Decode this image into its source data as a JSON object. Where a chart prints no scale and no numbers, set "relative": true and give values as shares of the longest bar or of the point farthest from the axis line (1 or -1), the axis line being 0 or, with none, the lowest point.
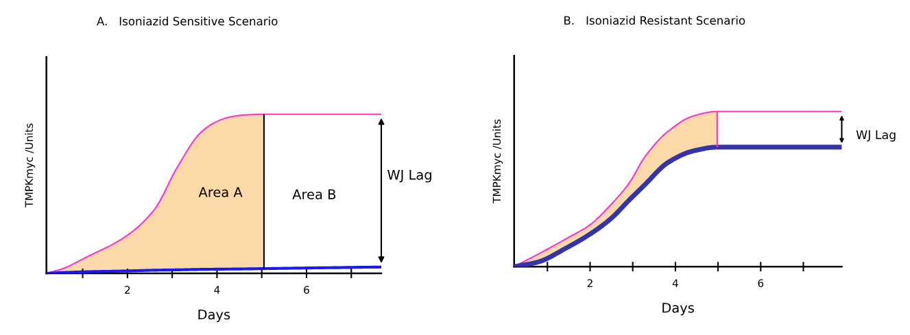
{
  "chart_data": [
    {
      "type": "line",
      "title": "A.   Isoniazid Sensitive Scenario",
      "xlabel": "Days",
      "ylabel": "TMPKmyc /Units",
      "relative": true,
      "xlim": [
        0.19,
        7.67
      ],
      "xticks": [
        {
          "value": 1,
          "label": null
        },
        2,
        {
          "value": 3,
          "label": null
        },
        4,
        {
          "value": 5,
          "label": null
        },
        6,
        {
          "value": 7,
          "label": null
        }
      ],
      "series": [
        {
          "color": "#ff33cc",
          "x": [
            0.19,
            0.56,
            1.07,
            1.95,
            2.6,
            3.1,
            3.62,
            3.9,
            4.25,
            4.6,
            5.05,
            7.67
          ],
          "values": [
            0,
            0.03,
            0.1,
            0.23,
            0.4,
            0.66,
            0.88,
            0.94,
            0.98,
            0.995,
            1,
            1
          ]
        },
        {
          "color": "#1a1aee",
          "x": [
            0.19,
            0.56,
            1.07,
            1.95,
            2.6,
            3.1,
            3.62,
            3.9,
            4.25,
            4.6,
            5.05,
            7.67
          ],
          "values": [
            0,
            0.005,
            0.01,
            0.015,
            0.02,
            0.022,
            0.025,
            0.026,
            0.027,
            0.028,
            0.03,
            0.04
          ],
          "lower": [
            0,
            0.005,
            0.01,
            0.015,
            0.02,
            0.022,
            0.025,
            0.026,
            0.027,
            0.028,
            0.03,
            null
          ],
          "upper": [
            0,
            0.03,
            0.1,
            0.23,
            0.4,
            0.66,
            0.88,
            0.94,
            0.98,
            0.995,
            1,
            null
          ]
        }
      ],
      "ref_lines": [
        {
          "axis": "x",
          "value": 5.05,
          "color": "#000000"
        }
      ],
      "annotations": [
        "Area A",
        "Area B",
        "WJ Lag"
      ]
    },
    {
      "type": "line",
      "title": "B.   Isoniazid Resistant Scenario",
      "xlabel": "Days",
      "ylabel": "TMPKmyc /Units",
      "relative": true,
      "xlim": [
        0.22,
        7.9
      ],
      "xticks": [
        {
          "value": 1,
          "label": null
        },
        2,
        {
          "value": 3,
          "label": null
        },
        4,
        {
          "value": 5,
          "label": null
        },
        6,
        {
          "value": 7,
          "label": null
        }
      ],
      "series": [
        {
          "color": "#ff33cc",
          "x": [
            0.22,
            0.78,
            1.44,
            2,
            2.49,
            2.92,
            3.29,
            3.82,
            4.41,
            4.98,
            7.9
          ],
          "values": [
            0,
            0.08,
            0.18,
            0.27,
            0.4,
            0.54,
            0.71,
            0.87,
            0.97,
            1,
            1
          ]
        },
        {
          "color": "#3333aa",
          "x": [
            0.22,
            0.78,
            1.44,
            2,
            2.49,
            2.92,
            3.29,
            3.82,
            4.41,
            4.98,
            7.9
          ],
          "values": [
            0,
            0.03,
            0.12,
            0.21,
            0.31,
            0.43,
            0.53,
            0.67,
            0.745,
            0.77,
            0.77
          ],
          "lower": [
            0,
            0.03,
            0.12,
            0.21,
            0.31,
            0.43,
            0.53,
            0.67,
            0.745,
            0.77,
            null
          ],
          "upper": [
            0,
            0.08,
            0.18,
            0.27,
            0.4,
            0.54,
            0.71,
            0.87,
            0.97,
            1,
            null
          ]
        }
      ],
      "ref_lines": [
        {
          "axis": "x",
          "value": 4.98,
          "color": "#ff33cc"
        }
      ],
      "annotations": [
        "WJ Lag"
      ]
    }
  ]
}
